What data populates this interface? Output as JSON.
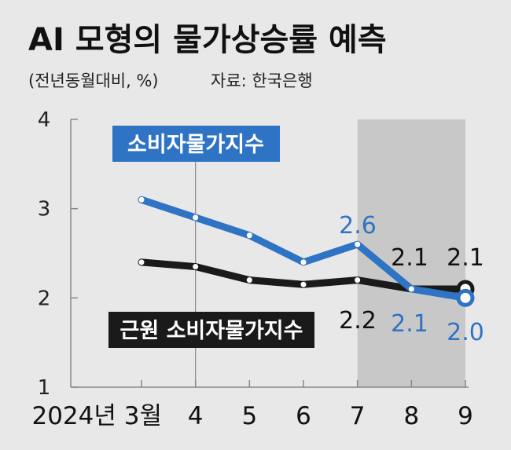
{
  "title": "AI 모형의 물가상승률 예측",
  "subtitle": "(전년동월대비, %)",
  "source": "자료: 한국은행",
  "colors": {
    "background": "#e8e8e8",
    "forecast_shade": "#c8c8c8",
    "cpi": "#2f73c4",
    "core": "#1a1a1a",
    "axis": "#888888",
    "text": "#111111"
  },
  "chart_data": {
    "type": "line",
    "categories": [
      "2024년 3월",
      "4",
      "5",
      "6",
      "7",
      "8",
      "9"
    ],
    "ylim": [
      1,
      4
    ],
    "yticks": [
      "1",
      "2",
      "3",
      "4"
    ],
    "shaded_range": [
      "7",
      "9"
    ],
    "series": [
      {
        "name": "소비자물가지수",
        "color": "#2f73c4",
        "values": [
          3.1,
          2.9,
          2.7,
          2.4,
          2.6,
          2.1,
          2.0
        ],
        "labels": {
          "4": "2.6",
          "5": "2.1",
          "6": "2.0"
        }
      },
      {
        "name": "근원 소비자물가지수",
        "color": "#1a1a1a",
        "values": [
          2.4,
          2.35,
          2.2,
          2.15,
          2.2,
          2.1,
          2.1
        ],
        "labels": {
          "4": "2.2",
          "5": "2.1",
          "6": "2.1"
        }
      }
    ]
  }
}
